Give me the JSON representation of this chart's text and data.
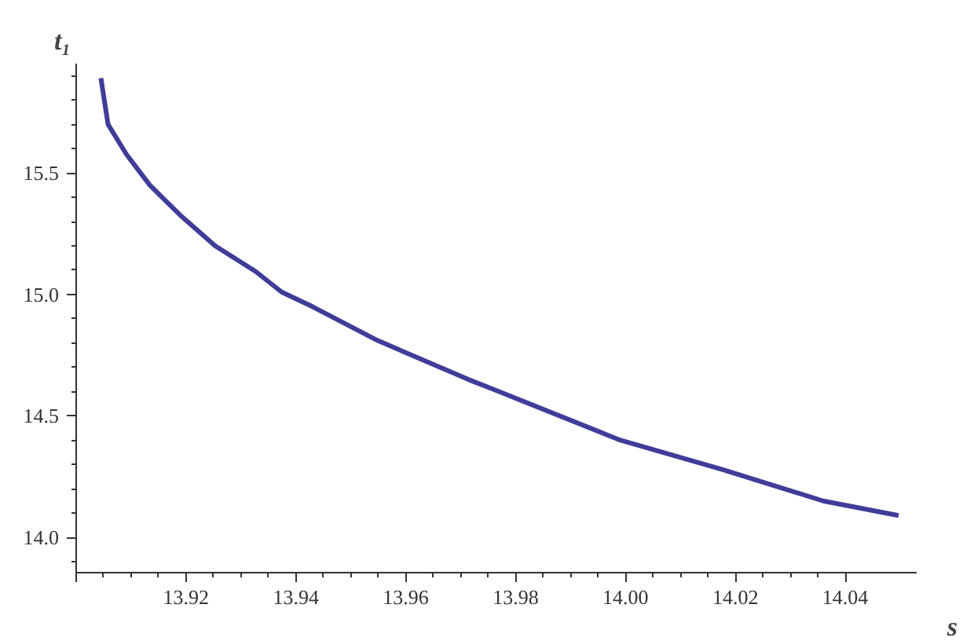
{
  "chart_data": {
    "type": "line",
    "xlabel": "s",
    "ylabel": "t₁",
    "series": [
      {
        "color": "#3f3d99",
        "x": [
          13.9045,
          13.9058,
          13.9092,
          13.9134,
          13.9189,
          13.9253,
          13.9327,
          13.9374,
          13.943,
          13.9549,
          13.9714,
          13.977,
          13.9991,
          14.0176,
          14.036,
          14.0497
        ],
        "values": [
          15.89,
          15.7,
          15.575,
          15.45,
          15.327,
          15.2,
          15.094,
          15.01,
          14.95,
          14.81,
          14.65,
          14.6,
          14.4,
          14.28,
          14.15,
          14.09
        ]
      }
    ],
    "xlim": [
      13.9,
      14.053
    ],
    "ylim": [
      13.855,
      15.95
    ],
    "xticks": [
      {
        "value": 13.9,
        "label": null
      },
      13.92,
      13.94,
      13.96,
      13.98,
      {
        "value": 14.0,
        "label": "14.00"
      },
      14.02,
      14.04
    ],
    "yticks": [
      {
        "value": 14.0,
        "label": "14.0"
      },
      14.5,
      {
        "value": 15.0,
        "label": "15.0"
      },
      15.5
    ],
    "grid": false,
    "marker": "none",
    "line_style": "solid"
  }
}
